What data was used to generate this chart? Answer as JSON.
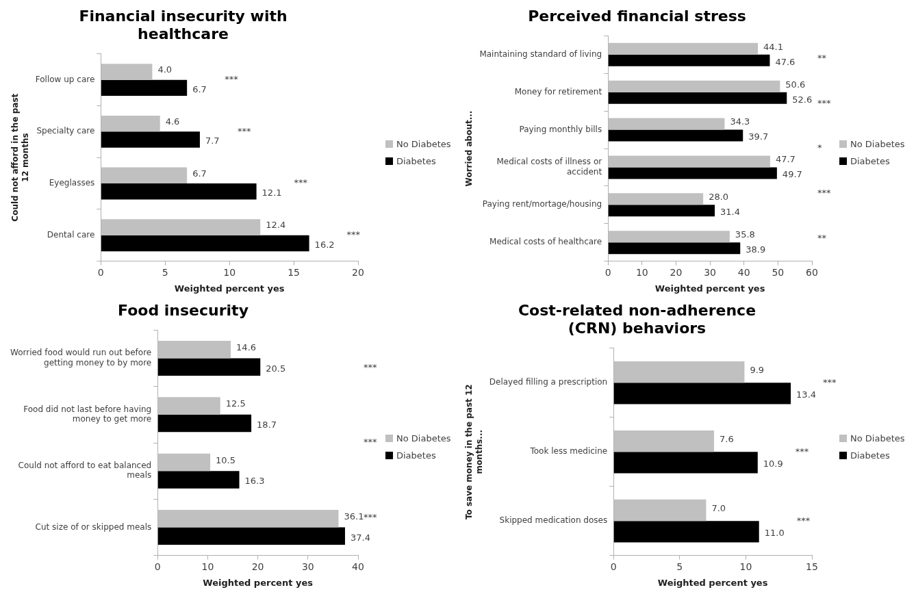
{
  "chart_data": [
    {
      "type": "bar",
      "orientation": "horizontal",
      "title": "Financial insecurity with healthcare",
      "xlabel": "Weighted percent yes",
      "ylabel": "Could not afford in the past 12 months",
      "categories": [
        "Follow up care",
        "Specialty care",
        "Eyeglasses",
        "Dental care"
      ],
      "series": [
        {
          "name": "No Diabetes",
          "color": "#c0c0c0",
          "values": [
            4.0,
            4.6,
            6.7,
            12.4
          ],
          "value_labels": [
            "4.0",
            "4.6",
            "6.7",
            "12.4"
          ]
        },
        {
          "name": "Diabetes",
          "color": "#000000",
          "values": [
            6.7,
            7.7,
            12.1,
            16.2
          ],
          "value_labels": [
            "6.7",
            "7.7",
            "12.1",
            "16.2"
          ]
        }
      ],
      "xlim": [
        0,
        20
      ],
      "xticks": [
        0,
        5,
        10,
        15,
        20
      ],
      "grid": false,
      "legend": "right",
      "annotations": [
        "***",
        "***",
        "***",
        "***"
      ]
    },
    {
      "type": "bar",
      "orientation": "horizontal",
      "title": "Perceived financial stress",
      "xlabel": "Weighted percent yes",
      "ylabel": "Worried about...",
      "categories": [
        "Maintaining standard of living",
        "Money for retirement",
        "Paying monthly bills",
        "Medical costs of illness or accident",
        "Paying rent/mortage/housing",
        "Medical costs of healthcare"
      ],
      "series": [
        {
          "name": "No Diabetes",
          "color": "#c0c0c0",
          "values": [
            44.1,
            50.6,
            34.3,
            47.7,
            28.0,
            35.8
          ],
          "value_labels": [
            "44.1",
            "50.6",
            "34.3",
            "47.7",
            "28.0",
            "35.8"
          ]
        },
        {
          "name": "Diabetes",
          "color": "#000000",
          "values": [
            47.6,
            52.6,
            39.7,
            49.7,
            31.4,
            38.9
          ],
          "value_labels": [
            "47.6",
            "52.6",
            "39.7",
            "49.7",
            "31.4",
            "38.9"
          ]
        }
      ],
      "xlim": [
        0,
        60
      ],
      "xticks": [
        0,
        10,
        20,
        30,
        40,
        50,
        60
      ],
      "grid": false,
      "legend": "right",
      "annotations": [
        "**",
        "***",
        "*",
        "***",
        "**"
      ]
    },
    {
      "type": "bar",
      "orientation": "horizontal",
      "title": "Food insecurity",
      "xlabel": "Weighted percent yes",
      "categories": [
        "Worried food would run out before getting money to by more",
        "Food did not last before having money to get more",
        "Could not afford to eat balanced meals",
        "Cut size of or skipped meals"
      ],
      "series": [
        {
          "name": "No Diabetes",
          "color": "#c0c0c0",
          "values": [
            14.6,
            12.5,
            10.5,
            36.1
          ],
          "value_labels": [
            "14.6",
            "12.5",
            "10.5",
            "36.1"
          ]
        },
        {
          "name": "Diabetes",
          "color": "#000000",
          "values": [
            20.5,
            18.7,
            16.3,
            37.4
          ],
          "value_labels": [
            "20.5",
            "18.7",
            "16.3",
            "37.4"
          ]
        }
      ],
      "xlim": [
        0,
        40
      ],
      "xticks": [
        0,
        10,
        20,
        30,
        40
      ],
      "grid": false,
      "legend": "right",
      "annotations": [
        "***",
        "***",
        "***"
      ]
    },
    {
      "type": "bar",
      "orientation": "horizontal",
      "title": "Cost-related non-adherence (CRN) behaviors",
      "xlabel": "Weighted percent yes",
      "ylabel": "To save money in the past 12 months...",
      "categories": [
        "Delayed filling a prescription",
        "Took less medicine",
        "Skipped medication doses"
      ],
      "series": [
        {
          "name": "No Diabetes",
          "color": "#c0c0c0",
          "values": [
            9.9,
            7.6,
            7.0
          ],
          "value_labels": [
            "9.9",
            "7.6",
            "7.0"
          ]
        },
        {
          "name": "Diabetes",
          "color": "#000000",
          "values": [
            13.4,
            10.9,
            11.0
          ],
          "value_labels": [
            "13.4",
            "10.9",
            "11.0"
          ]
        }
      ],
      "xlim": [
        0,
        15
      ],
      "xticks": [
        0,
        5,
        10,
        15
      ],
      "grid": false,
      "legend": "right",
      "annotations": [
        "***",
        "***",
        "***"
      ]
    }
  ]
}
